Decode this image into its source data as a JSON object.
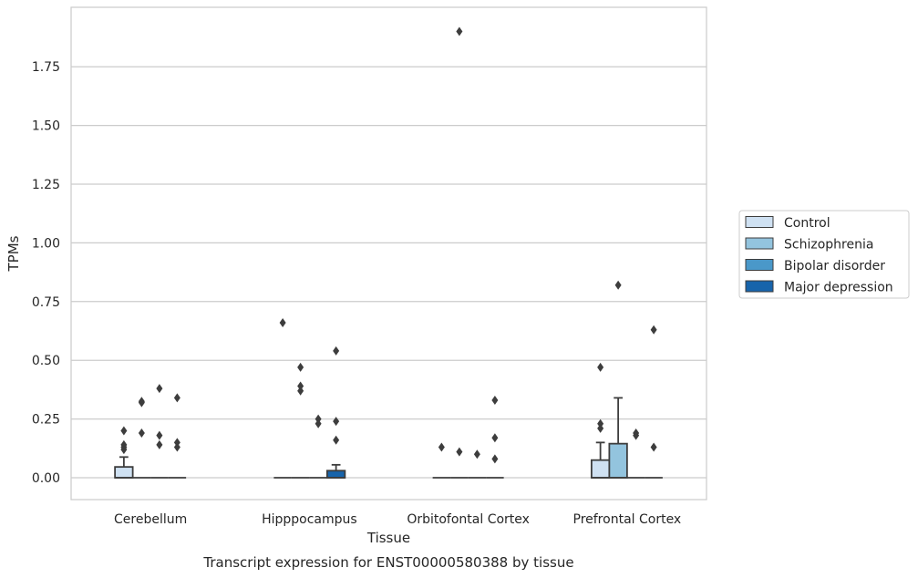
{
  "chart_data": {
    "type": "box",
    "caption": "Transcript expression for ENST00000580388 by tissue",
    "xlabel": "Tissue",
    "ylabel": "TPMs",
    "categories": [
      "Cerebellum",
      "Hipppocampus",
      "Orbitofontal Cortex",
      "Prefrontal Cortex"
    ],
    "ylim": [
      -0.09,
      1.99
    ],
    "yticks": [
      "0.00",
      "0.25",
      "0.50",
      "0.75",
      "1.00",
      "1.25",
      "1.50",
      "1.75"
    ],
    "ytick_values": [
      0,
      0.25,
      0.5,
      0.75,
      1.0,
      1.25,
      1.5,
      1.75
    ],
    "grid": true,
    "legend_position": "right",
    "series": [
      {
        "name": "Control",
        "color": "#cfe1f2",
        "boxes": [
          {
            "q1": 0,
            "median": 0,
            "q3": 0.046,
            "whisker_low": 0,
            "whisker_high": 0.088,
            "outliers": [
              0.2,
              0.14,
              0.12,
              0.13
            ]
          },
          {
            "q1": 0,
            "median": 0,
            "q3": 0,
            "whisker_low": 0,
            "whisker_high": 0,
            "outliers": [
              0.66
            ]
          },
          {
            "q1": 0,
            "median": 0,
            "q3": 0,
            "whisker_low": 0,
            "whisker_high": 0,
            "outliers": [
              0.13
            ]
          },
          {
            "q1": 0,
            "median": 0,
            "q3": 0.075,
            "whisker_low": 0,
            "whisker_high": 0.15,
            "outliers": [
              0.47,
              0.23,
              0.21
            ]
          }
        ]
      },
      {
        "name": "Schizophrenia",
        "color": "#93c4de",
        "boxes": [
          {
            "q1": 0,
            "median": 0,
            "q3": 0,
            "whisker_low": 0,
            "whisker_high": 0,
            "outliers": [
              0.32,
              0.325,
              0.19
            ]
          },
          {
            "q1": 0,
            "median": 0,
            "q3": 0,
            "whisker_low": 0,
            "whisker_high": 0,
            "outliers": [
              0.47,
              0.39,
              0.37
            ]
          },
          {
            "q1": 0,
            "median": 0,
            "q3": 0,
            "whisker_low": 0,
            "whisker_high": 0,
            "outliers": [
              1.9,
              0.11
            ]
          },
          {
            "q1": 0,
            "median": 0,
            "q3": 0.145,
            "whisker_low": 0,
            "whisker_high": 0.34,
            "outliers": [
              0.82
            ]
          }
        ]
      },
      {
        "name": "Bipolar disorder",
        "color": "#4a98c9",
        "boxes": [
          {
            "q1": 0,
            "median": 0,
            "q3": 0,
            "whisker_low": 0,
            "whisker_high": 0,
            "outliers": [
              0.38,
              0.18,
              0.14
            ]
          },
          {
            "q1": 0,
            "median": 0,
            "q3": 0,
            "whisker_low": 0,
            "whisker_high": 0,
            "outliers": [
              0.25,
              0.23
            ]
          },
          {
            "q1": 0,
            "median": 0,
            "q3": 0,
            "whisker_low": 0,
            "whisker_high": 0,
            "outliers": [
              0.1
            ]
          },
          {
            "q1": 0,
            "median": 0,
            "q3": 0,
            "whisker_low": 0,
            "whisker_high": 0,
            "outliers": [
              0.19,
              0.18
            ]
          }
        ]
      },
      {
        "name": "Major depression",
        "color": "#1764ab",
        "boxes": [
          {
            "q1": 0,
            "median": 0,
            "q3": 0,
            "whisker_low": 0,
            "whisker_high": 0,
            "outliers": [
              0.34,
              0.15,
              0.13
            ]
          },
          {
            "q1": 0,
            "median": 0,
            "q3": 0.03,
            "whisker_low": 0,
            "whisker_high": 0.055,
            "outliers": [
              0.54,
              0.24,
              0.16
            ]
          },
          {
            "q1": 0,
            "median": 0,
            "q3": 0,
            "whisker_low": 0,
            "whisker_high": 0,
            "outliers": [
              0.33,
              0.17,
              0.08
            ]
          },
          {
            "q1": 0,
            "median": 0,
            "q3": 0,
            "whisker_low": 0,
            "whisker_high": 0,
            "outliers": [
              0.63,
              0.13
            ]
          }
        ]
      }
    ]
  }
}
